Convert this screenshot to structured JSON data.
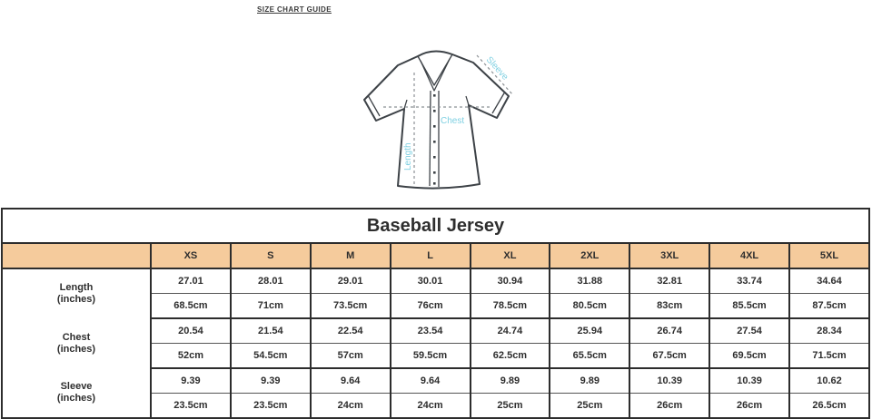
{
  "page_title": "SIZE CHART GUIDE",
  "diagram": {
    "length_label": "Length",
    "chest_label": "Chest",
    "sleeve_label": "Sleeve",
    "label_color": "#7FD0E2",
    "outline_color": "#3D4247"
  },
  "chart_data": {
    "type": "table",
    "title": "Baseball Jersey",
    "header_bg": "#F5CB9C",
    "sizes": [
      "XS",
      "S",
      "M",
      "L",
      "XL",
      "2XL",
      "3XL",
      "4XL",
      "5XL"
    ],
    "rows": [
      {
        "label": "Length",
        "sublabel": "(inches)",
        "inches": [
          "27.01",
          "28.01",
          "29.01",
          "30.01",
          "30.94",
          "31.88",
          "32.81",
          "33.74",
          "34.64"
        ],
        "cm": [
          "68.5cm",
          "71cm",
          "73.5cm",
          "76cm",
          "78.5cm",
          "80.5cm",
          "83cm",
          "85.5cm",
          "87.5cm"
        ]
      },
      {
        "label": "Chest",
        "sublabel": "(inches)",
        "inches": [
          "20.54",
          "21.54",
          "22.54",
          "23.54",
          "24.74",
          "25.94",
          "26.74",
          "27.54",
          "28.34"
        ],
        "cm": [
          "52cm",
          "54.5cm",
          "57cm",
          "59.5cm",
          "62.5cm",
          "65.5cm",
          "67.5cm",
          "69.5cm",
          "71.5cm"
        ]
      },
      {
        "label": "Sleeve",
        "sublabel": "(inches)",
        "inches": [
          "9.39",
          "9.39",
          "9.64",
          "9.64",
          "9.89",
          "9.89",
          "10.39",
          "10.39",
          "10.62"
        ],
        "cm": [
          "23.5cm",
          "23.5cm",
          "24cm",
          "24cm",
          "25cm",
          "25cm",
          "26cm",
          "26cm",
          "26.5cm"
        ]
      }
    ]
  }
}
